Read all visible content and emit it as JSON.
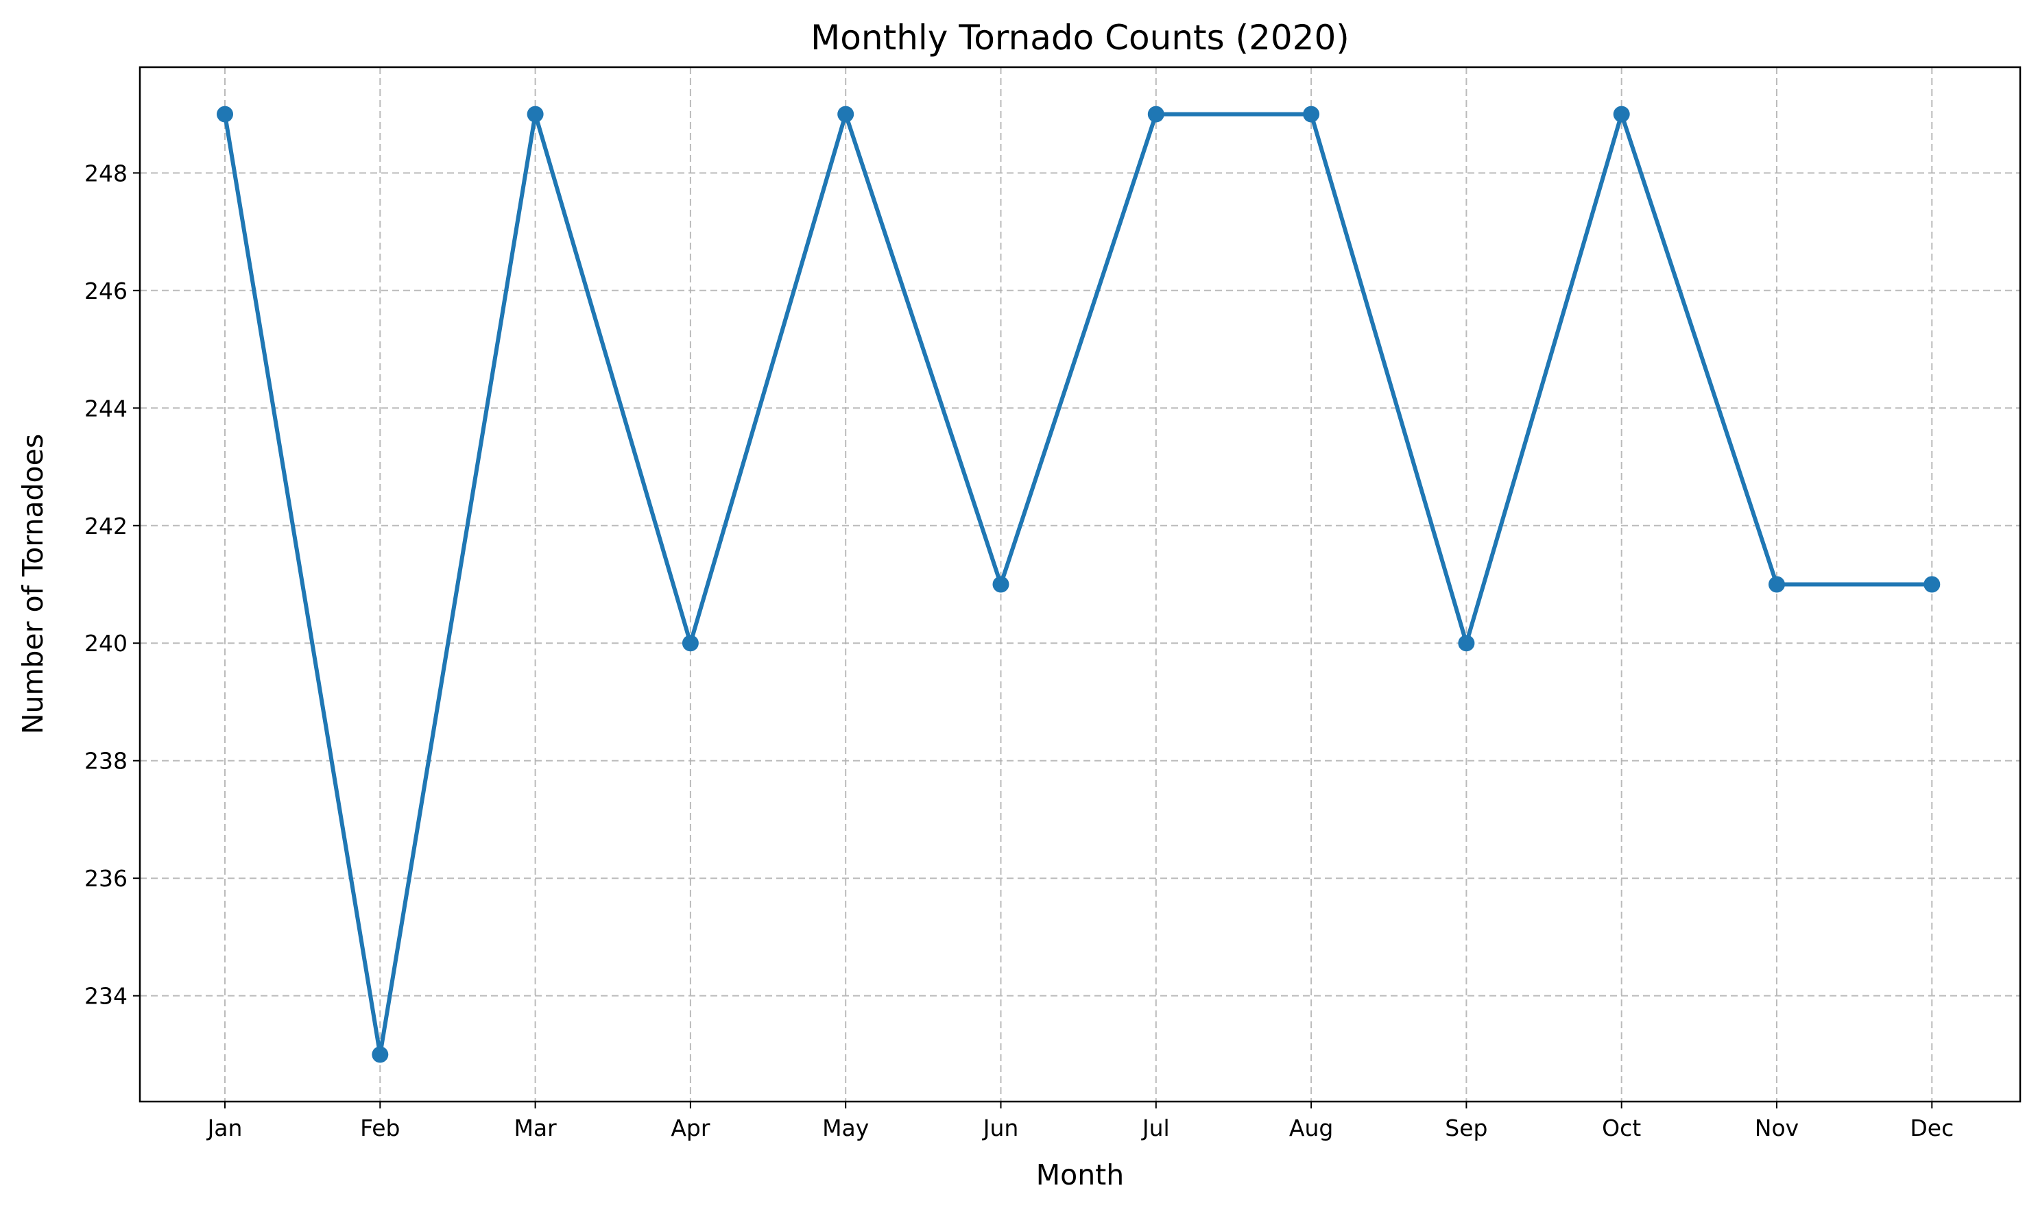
{
  "chart_data": {
    "type": "line",
    "title": "Monthly Tornado Counts (2020)",
    "xlabel": "Month",
    "ylabel": "Number of Tornadoes",
    "categories": [
      "Jan",
      "Feb",
      "Mar",
      "Apr",
      "May",
      "Jun",
      "Jul",
      "Aug",
      "Sep",
      "Oct",
      "Nov",
      "Dec"
    ],
    "series": [
      {
        "values": [
          249,
          233,
          249,
          240,
          249,
          241,
          249,
          249,
          240,
          249,
          241,
          241
        ]
      }
    ],
    "yticks": [
      234,
      236,
      238,
      240,
      242,
      244,
      246,
      248
    ],
    "ylim": [
      232.2,
      249.8
    ],
    "grid": true,
    "markers": true,
    "line_color": "#1f77b4"
  }
}
